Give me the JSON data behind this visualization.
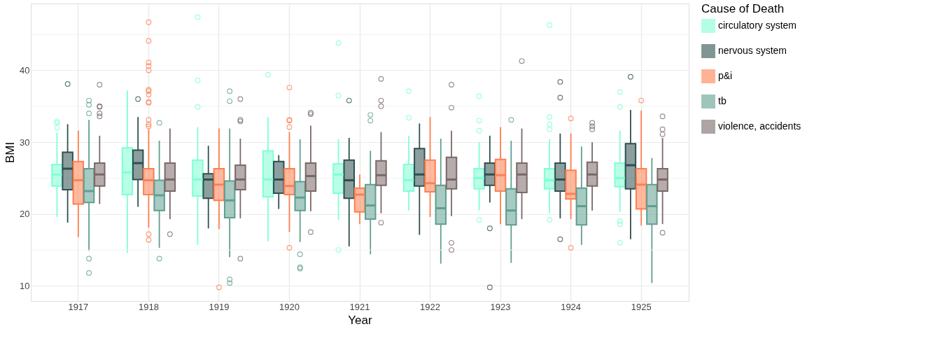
{
  "chart_data": {
    "type": "box",
    "xlabel": "Year",
    "ylabel": "BMI",
    "legend_title": "Cause of Death",
    "legend": "right",
    "grid": true,
    "categories": [
      "1917",
      "1918",
      "1919",
      "1920",
      "1921",
      "1922",
      "1923",
      "1924",
      "1925"
    ],
    "ylim": [
      7.9,
      49.3
    ],
    "yticks": [
      10,
      {
        "value": 15,
        "label": null
      },
      20,
      {
        "value": 25,
        "label": null
      },
      30,
      {
        "value": 35,
        "label": null
      },
      40,
      {
        "value": 45,
        "label": null
      }
    ],
    "series": [
      {
        "name": "circulatory system",
        "color": "#7fffd4",
        "boxes": [
          {
            "low": 19.6,
            "q1": 23.9,
            "median": 25.5,
            "q3": 26.9,
            "high": 31.3,
            "outliers": [
              32.9,
              32.7,
              32.0
            ]
          },
          {
            "low": 14.6,
            "q1": 22.7,
            "median": 25.8,
            "q3": 29.2,
            "high": 37.2
          },
          {
            "low": 15.7,
            "q1": 22.5,
            "median": 24.8,
            "q3": 27.5,
            "high": 32.1,
            "outliers": [
              47.4,
              38.6,
              34.9
            ]
          },
          {
            "low": 16.2,
            "q1": 22.4,
            "median": 24.8,
            "q3": 28.8,
            "high": 33.5,
            "outliers": [
              39.4
            ]
          },
          {
            "low": 19.2,
            "q1": 22.9,
            "median": 25.5,
            "q3": 27.0,
            "high": 30.4,
            "outliers": [
              43.8,
              36.5,
              15.0
            ]
          },
          {
            "low": 20.5,
            "q1": 23.2,
            "median": 24.7,
            "q3": 26.9,
            "high": 30.9,
            "outliers": [
              37.1,
              33.4
            ]
          },
          {
            "low": 20.5,
            "q1": 23.5,
            "median": 25.0,
            "q3": 26.3,
            "high": 30.0,
            "outliers": [
              36.4,
              33.0,
              31.6,
              19.2
            ]
          },
          {
            "low": 20.1,
            "q1": 23.5,
            "median": 24.7,
            "q3": 26.3,
            "high": 30.4,
            "outliers": [
              46.3,
              33.5,
              32.5,
              31.8,
              19.2
            ]
          },
          {
            "low": 20.3,
            "q1": 23.8,
            "median": 25.0,
            "q3": 27.1,
            "high": 31.6,
            "outliers": [
              37.0,
              34.9,
              19.0,
              18.6,
              16.0
            ]
          }
        ]
      },
      {
        "name": "nervous system",
        "color": "#2f4f4f",
        "boxes": [
          {
            "low": 18.8,
            "q1": 23.4,
            "median": 26.3,
            "q3": 28.6,
            "high": 32.5,
            "outliers": [
              38.1
            ]
          },
          {
            "low": 21.0,
            "q1": 24.8,
            "median": 27.1,
            "q3": 28.9,
            "high": 33.5,
            "outliers": [
              36.0
            ]
          },
          {
            "low": 18.0,
            "q1": 22.2,
            "median": 24.8,
            "q3": 25.6,
            "high": 29.5
          },
          {
            "low": 20.7,
            "q1": 22.9,
            "median": 24.8,
            "q3": 27.3,
            "high": 28.2
          },
          {
            "low": 15.5,
            "q1": 22.2,
            "median": 24.7,
            "q3": 27.5,
            "high": 30.6,
            "outliers": [
              35.8
            ]
          },
          {
            "low": 17.1,
            "q1": 23.9,
            "median": 25.5,
            "q3": 29.1,
            "high": 32.6
          },
          {
            "low": 21.6,
            "q1": 24.0,
            "median": 25.5,
            "q3": 27.1,
            "high": 30.9,
            "outliers": [
              18.0,
              9.8
            ]
          },
          {
            "low": 19.4,
            "q1": 23.2,
            "median": 24.8,
            "q3": 27.1,
            "high": 31.2,
            "outliers": [
              38.4,
              36.2,
              16.5
            ]
          },
          {
            "low": 16.5,
            "q1": 23.5,
            "median": 26.8,
            "q3": 29.8,
            "high": 34.5,
            "outliers": [
              39.1
            ]
          }
        ]
      },
      {
        "name": "p&i",
        "color": "#ff7f50",
        "boxes": [
          {
            "low": 16.8,
            "q1": 21.4,
            "median": 24.7,
            "q3": 27.3,
            "high": 31.6
          },
          {
            "low": 18.1,
            "q1": 22.7,
            "median": 24.7,
            "q3": 26.3,
            "high": 31.8,
            "outliers": [
              46.7,
              44.1,
              41.1,
              40.6,
              40.0,
              37.3,
              37.1,
              36.6,
              35.6,
              35.5,
              33.1,
              32.5,
              32.2,
              17.2,
              16.4
            ]
          },
          {
            "low": 17.9,
            "q1": 21.9,
            "median": 24.1,
            "q3": 26.3,
            "high": 31.9,
            "outliers": [
              9.8
            ]
          },
          {
            "low": 17.5,
            "q1": 22.7,
            "median": 23.9,
            "q3": 26.3,
            "high": 31.4,
            "outliers": [
              37.6,
              33.1,
              33.0,
              32.1,
              15.3
            ]
          },
          {
            "low": 18.6,
            "q1": 20.3,
            "median": 22.7,
            "q3": 23.6,
            "high": 25.5
          },
          {
            "low": 19.6,
            "q1": 23.1,
            "median": 24.3,
            "q3": 27.5,
            "high": 33.5
          },
          {
            "low": 18.6,
            "q1": 23.2,
            "median": 25.4,
            "q3": 27.6,
            "high": 32.1
          },
          {
            "low": 19.3,
            "q1": 22.1,
            "median": 22.8,
            "q3": 26.1,
            "high": 31.2,
            "outliers": [
              33.3,
              15.3
            ]
          },
          {
            "low": 18.4,
            "q1": 20.7,
            "median": 24.1,
            "q3": 26.3,
            "high": 34.4,
            "outliers": [
              35.8
            ]
          }
        ]
      },
      {
        "name": "tb",
        "color": "#5f9f8f",
        "boxes": [
          {
            "low": 14.9,
            "q1": 21.6,
            "median": 23.2,
            "q3": 26.3,
            "high": 33.1,
            "outliers": [
              35.8,
              35.2,
              34.0,
              13.8,
              11.8
            ]
          },
          {
            "low": 15.3,
            "q1": 20.5,
            "median": 22.6,
            "q3": 24.7,
            "high": 30.2,
            "outliers": [
              32.7,
              13.8
            ]
          },
          {
            "low": 14.0,
            "q1": 19.5,
            "median": 21.9,
            "q3": 24.6,
            "high": 31.9,
            "outliers": [
              37.1,
              35.7,
              10.9,
              10.4
            ]
          },
          {
            "low": 16.1,
            "q1": 20.5,
            "median": 22.3,
            "q3": 24.5,
            "high": 30.4,
            "outliers": [
              14.4,
              12.6,
              12.4
            ]
          },
          {
            "low": 14.4,
            "q1": 19.3,
            "median": 21.2,
            "q3": 24.1,
            "high": 28.8,
            "outliers": [
              33.8,
              33.0
            ]
          },
          {
            "low": 13.1,
            "q1": 18.6,
            "median": 20.8,
            "q3": 24.0,
            "high": 30.5
          },
          {
            "low": 13.2,
            "q1": 18.5,
            "median": 20.5,
            "q3": 23.5,
            "high": 30.2,
            "outliers": [
              33.1
            ]
          },
          {
            "low": 15.7,
            "q1": 18.5,
            "median": 21.1,
            "q3": 23.6,
            "high": 29.4
          },
          {
            "low": 10.4,
            "q1": 18.6,
            "median": 21.1,
            "q3": 24.1,
            "high": 27.8
          }
        ]
      },
      {
        "name": "violence, accidents",
        "color": "#7a6868",
        "boxes": [
          {
            "low": 21.4,
            "q1": 23.9,
            "median": 25.5,
            "q3": 27.1,
            "high": 30.9,
            "outliers": [
              38.0,
              35.0,
              34.9,
              34.0,
              33.6
            ]
          },
          {
            "low": 19.3,
            "q1": 23.2,
            "median": 24.8,
            "q3": 27.1,
            "high": 31.9,
            "outliers": [
              17.2
            ]
          },
          {
            "low": 19.4,
            "q1": 23.4,
            "median": 24.8,
            "q3": 26.8,
            "high": 30.5,
            "outliers": [
              36.0,
              33.1,
              32.9,
              13.8
            ]
          },
          {
            "low": 20.4,
            "q1": 23.2,
            "median": 25.3,
            "q3": 27.1,
            "high": 32.3,
            "outliers": [
              34.1,
              33.9,
              17.5
            ]
          },
          {
            "low": 20.1,
            "q1": 24.0,
            "median": 25.4,
            "q3": 27.4,
            "high": 31.4,
            "outliers": [
              38.8,
              35.8,
              35.0,
              18.8
            ]
          },
          {
            "low": 19.7,
            "q1": 23.5,
            "median": 24.8,
            "q3": 27.9,
            "high": 31.6,
            "outliers": [
              38.0,
              34.8,
              16.0,
              15.0
            ]
          },
          {
            "low": 19.3,
            "q1": 23.0,
            "median": 25.5,
            "q3": 27.1,
            "high": 31.9,
            "outliers": [
              41.3
            ]
          },
          {
            "low": 20.5,
            "q1": 23.9,
            "median": 25.5,
            "q3": 27.2,
            "high": 30.0,
            "outliers": [
              32.7,
              32.2,
              31.8
            ]
          },
          {
            "low": 18.6,
            "q1": 23.2,
            "median": 24.8,
            "q3": 26.3,
            "high": 30.6,
            "outliers": [
              33.6,
              31.8,
              31.1,
              17.4
            ]
          }
        ]
      }
    ]
  }
}
